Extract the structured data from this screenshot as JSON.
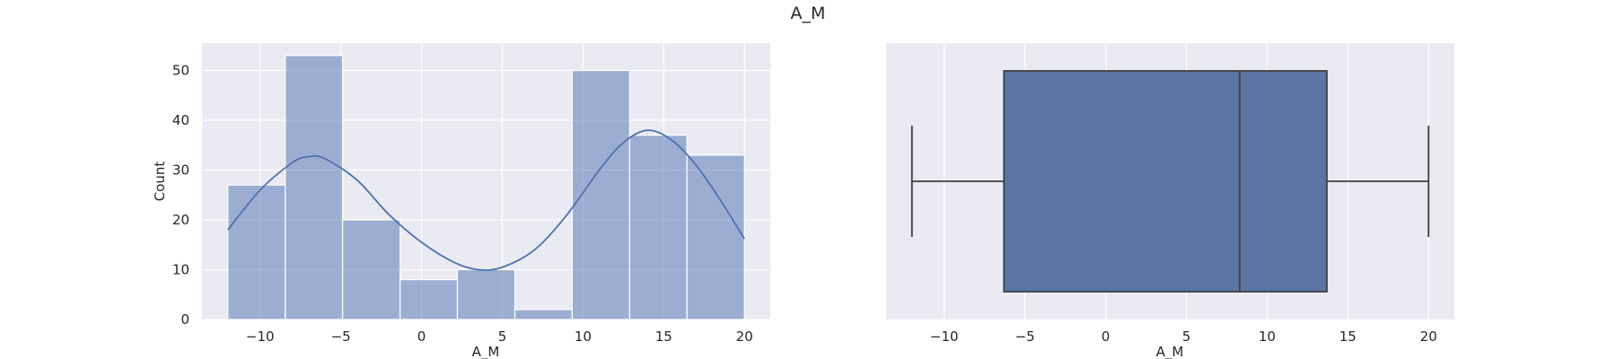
{
  "title": "A_M",
  "chart_data": [
    {
      "type": "bar",
      "subtype": "histogram",
      "xlabel": "A_M",
      "ylabel": "Count",
      "xlim": [
        -13.6,
        21.6
      ],
      "ylim": [
        0,
        55.5
      ],
      "xticks": [
        -10,
        -5,
        0,
        5,
        10,
        15,
        20
      ],
      "yticks": [
        0,
        10,
        20,
        30,
        40,
        50
      ],
      "tick_labels_x": [
        "−10",
        "−5",
        "0",
        "5",
        "10",
        "15",
        "20"
      ],
      "tick_labels_y": [
        "0",
        "10",
        "20",
        "30",
        "40",
        "50"
      ],
      "bin_edges": [
        -12.0,
        -8.44,
        -4.89,
        -1.33,
        2.22,
        5.78,
        9.33,
        12.89,
        16.44,
        20.0
      ],
      "values": [
        27,
        53,
        20,
        8,
        10,
        2,
        50,
        37,
        33
      ],
      "kde": {
        "x": [
          -12,
          -10,
          -8,
          -7,
          -6,
          -4,
          -2,
          0,
          2,
          3.5,
          5,
          7,
          9,
          11,
          12.5,
          14,
          15.5,
          17,
          18.5,
          20
        ],
        "y": [
          18,
          26,
          31.5,
          32.7,
          32.3,
          28,
          21,
          15.5,
          11.5,
          10,
          10.5,
          14,
          21,
          30,
          35.5,
          38,
          36,
          31,
          24,
          16.2
        ]
      },
      "grid": true,
      "color": "#4c72b0"
    },
    {
      "type": "box",
      "xlabel": "A_M",
      "xlim": [
        -13.6,
        21.6
      ],
      "xticks": [
        -10,
        -5,
        0,
        5,
        10,
        15,
        20
      ],
      "tick_labels_x": [
        "−10",
        "−5",
        "0",
        "5",
        "10",
        "15",
        "20"
      ],
      "whisker_low": -12.0,
      "q1": -6.3,
      "median": 8.3,
      "q3": 13.7,
      "whisker_high": 20.0,
      "grid": true,
      "color": "#5975a4"
    }
  ]
}
